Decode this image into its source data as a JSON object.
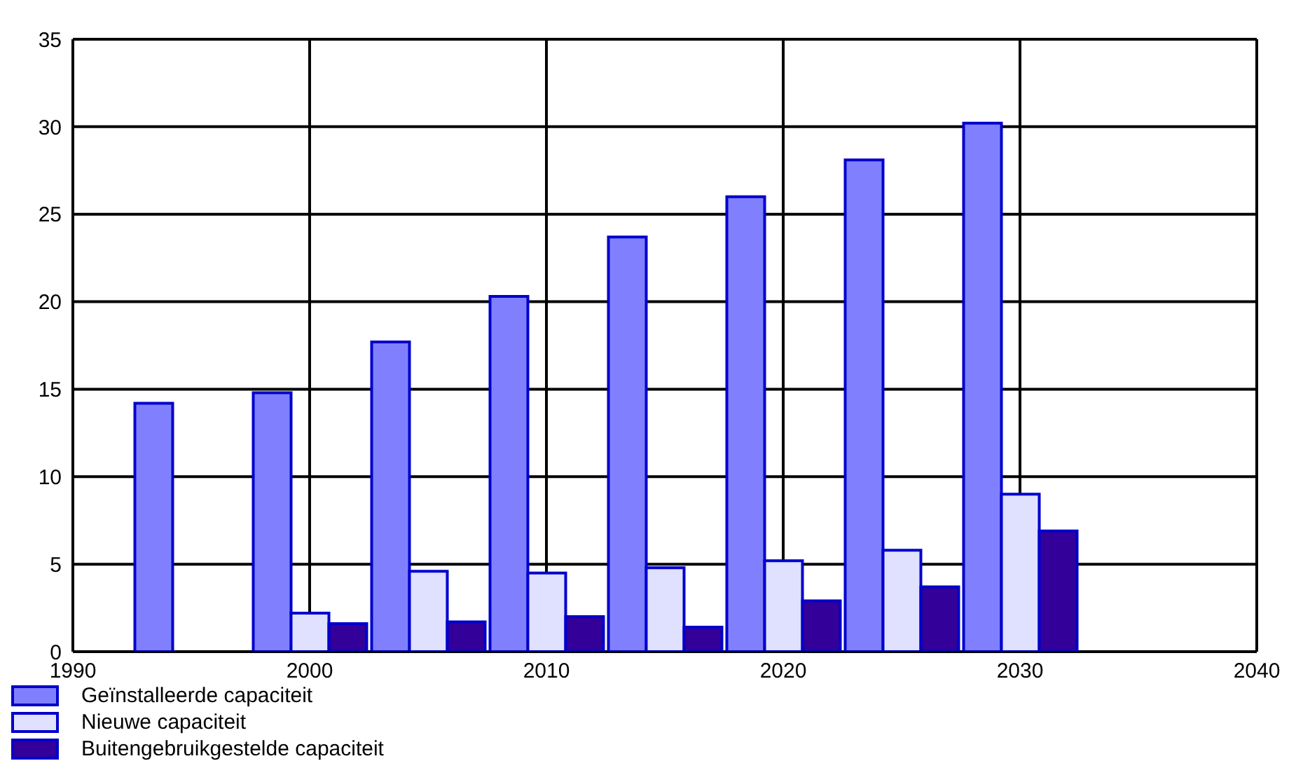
{
  "chart_data": {
    "type": "bar",
    "x": [
      1995,
      2000,
      2005,
      2010,
      2015,
      2020,
      2025,
      2030
    ],
    "series": [
      {
        "name": "Geïnstalleerde capaciteit",
        "color": "#8080ff",
        "values": [
          14.2,
          14.8,
          17.7,
          20.3,
          23.7,
          26.0,
          28.1,
          30.2
        ]
      },
      {
        "name": "Nieuwe capaciteit",
        "color": "#e0e0ff",
        "values": [
          null,
          2.2,
          4.6,
          4.5,
          4.8,
          5.2,
          5.8,
          9.0
        ]
      },
      {
        "name": "Buitengebruikgestelde capaciteit",
        "color": "#330099",
        "values": [
          null,
          1.6,
          1.7,
          2.0,
          1.4,
          2.9,
          3.7,
          6.9
        ]
      }
    ],
    "xlim": [
      1990,
      2040
    ],
    "xticks": [
      1990,
      2000,
      2010,
      2020,
      2030,
      2040
    ],
    "ylim": [
      0,
      35
    ],
    "yticks": [
      0,
      5,
      10,
      15,
      20,
      25,
      30,
      35
    ],
    "grid": true,
    "legend": "bottom left"
  }
}
